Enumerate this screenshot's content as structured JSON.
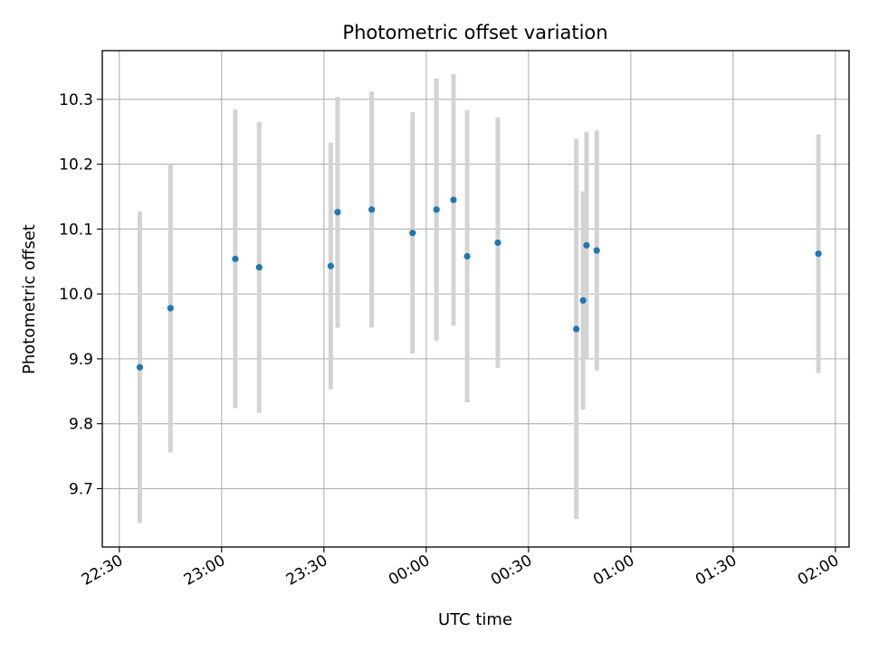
{
  "chart_data": {
    "type": "scatter",
    "title": "Photometric offset variation",
    "xlabel": "UTC time",
    "ylabel": "Photometric offset",
    "grid": true,
    "x_axis_kind": "time",
    "x_ticks": [
      "22:30",
      "23:00",
      "23:30",
      "00:00",
      "00:30",
      "01:00",
      "01:30",
      "02:00"
    ],
    "y_ticks": [
      "9.7",
      "9.8",
      "9.9",
      "10.0",
      "10.1",
      "10.2",
      "10.3"
    ],
    "xlim": [
      "22:25",
      "02:04"
    ],
    "ylim": [
      9.61,
      10.375
    ],
    "point_color": "#1f77b4",
    "errorbar_color": "#d3d3d3",
    "points": [
      {
        "x": "22:36",
        "y": 9.887,
        "yerr": 0.24
      },
      {
        "x": "22:45",
        "y": 9.978,
        "yerr": 0.222
      },
      {
        "x": "23:04",
        "y": 10.054,
        "yerr": 0.23
      },
      {
        "x": "23:11",
        "y": 10.041,
        "yerr": 0.224
      },
      {
        "x": "23:32",
        "y": 10.043,
        "yerr": 0.19
      },
      {
        "x": "23:34",
        "y": 10.126,
        "yerr": 0.178
      },
      {
        "x": "23:44",
        "y": 10.13,
        "yerr": 0.182
      },
      {
        "x": "23:56",
        "y": 10.094,
        "yerr": 0.186
      },
      {
        "x": "00:03",
        "y": 10.13,
        "yerr": 0.202
      },
      {
        "x": "00:08",
        "y": 10.145,
        "yerr": 0.194
      },
      {
        "x": "00:12",
        "y": 10.058,
        "yerr": 0.225
      },
      {
        "x": "00:21",
        "y": 10.079,
        "yerr": 0.193
      },
      {
        "x": "00:44",
        "y": 9.946,
        "yerr": 0.293
      },
      {
        "x": "00:46",
        "y": 9.99,
        "yerr": 0.168
      },
      {
        "x": "00:47",
        "y": 10.075,
        "yerr": 0.175
      },
      {
        "x": "00:50",
        "y": 10.067,
        "yerr": 0.185
      },
      {
        "x": "01:55",
        "y": 10.062,
        "yerr": 0.184
      }
    ]
  }
}
